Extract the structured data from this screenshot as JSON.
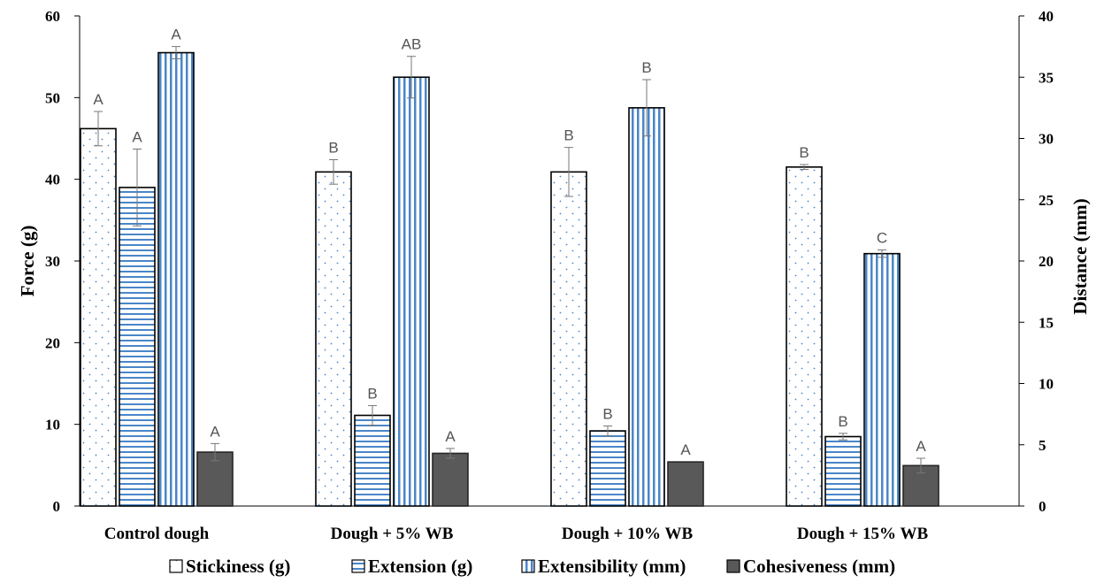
{
  "chart_data": {
    "type": "bar",
    "categories": [
      "Control dough",
      "Dough + 5% WB",
      "Dough + 10% WB",
      "Dough + 15% WB"
    ],
    "series": [
      {
        "name": "Stickiness (g)",
        "axis": "left",
        "values": [
          46.2,
          40.9,
          40.9,
          41.5
        ],
        "errors": [
          2.1,
          1.5,
          3.0,
          0.3
        ],
        "letters": [
          "A",
          "B",
          "B",
          "B"
        ],
        "pattern": "dots"
      },
      {
        "name": "Extension (g)",
        "axis": "left",
        "values": [
          39.0,
          11.1,
          9.2,
          8.5
        ],
        "errors": [
          4.7,
          1.2,
          0.6,
          0.4
        ],
        "letters": [
          "A",
          "B",
          "B",
          "B"
        ],
        "pattern": "hlines"
      },
      {
        "name": "Extensibility (mm)",
        "axis": "right",
        "values": [
          37.0,
          35.0,
          32.5,
          20.6
        ],
        "errors": [
          0.5,
          1.7,
          2.3,
          0.3
        ],
        "letters": [
          "A",
          "AB",
          "B",
          "C"
        ],
        "pattern": "vlines"
      },
      {
        "name": "Cohesiveness (mm)",
        "axis": "right",
        "values": [
          4.4,
          4.3,
          3.6,
          3.3
        ],
        "errors": [
          0.7,
          0.4,
          0.0,
          0.6
        ],
        "letters": [
          "A",
          "A",
          "A",
          "A"
        ],
        "pattern": "solid"
      }
    ],
    "ylabel": "Force (g)",
    "y2label": "Distance (mm)",
    "ylim": [
      0,
      60
    ],
    "y2lim": [
      0,
      40
    ],
    "yticks": [
      0,
      10,
      20,
      30,
      40,
      50,
      60
    ],
    "y2ticks": [
      0,
      5,
      10,
      15,
      20,
      25,
      30,
      35,
      40
    ],
    "legend": "bottom",
    "grid": false,
    "colors": {
      "blue_pattern": "#4a86c8",
      "solid_fill": "#595959",
      "sig_text": "#555555"
    }
  }
}
